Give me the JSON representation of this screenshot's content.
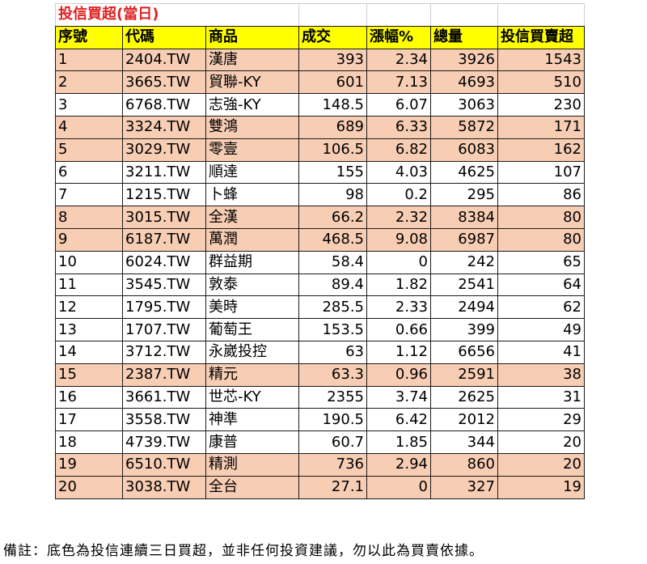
{
  "title": "投信買超(當日)",
  "colors": {
    "header_bg": "#ffff00",
    "highlight_bg": "#f7cdb4",
    "title_text": "#e02020"
  },
  "headers": [
    "序號",
    "代碼",
    "商品",
    "成交",
    "漲幅%",
    "總量",
    "投信買賣超"
  ],
  "rows": [
    {
      "rank": "1",
      "code": "2404.TW",
      "name": "漢唐",
      "price": "393",
      "change": "2.34",
      "volume": "3926",
      "net": "1543",
      "highlight": true
    },
    {
      "rank": "2",
      "code": "3665.TW",
      "name": "貿聯-KY",
      "price": "601",
      "change": "7.13",
      "volume": "4693",
      "net": "510",
      "highlight": true
    },
    {
      "rank": "3",
      "code": "6768.TW",
      "name": "志強-KY",
      "price": "148.5",
      "change": "6.07",
      "volume": "3063",
      "net": "230",
      "highlight": false
    },
    {
      "rank": "4",
      "code": "3324.TW",
      "name": "雙鴻",
      "price": "689",
      "change": "6.33",
      "volume": "5872",
      "net": "171",
      "highlight": true
    },
    {
      "rank": "5",
      "code": "3029.TW",
      "name": "零壹",
      "price": "106.5",
      "change": "6.82",
      "volume": "6083",
      "net": "162",
      "highlight": true
    },
    {
      "rank": "6",
      "code": "3211.TW",
      "name": "順達",
      "price": "155",
      "change": "4.03",
      "volume": "4625",
      "net": "107",
      "highlight": false
    },
    {
      "rank": "7",
      "code": "1215.TW",
      "name": "卜蜂",
      "price": "98",
      "change": "0.2",
      "volume": "295",
      "net": "86",
      "highlight": false
    },
    {
      "rank": "8",
      "code": "3015.TW",
      "name": "全漢",
      "price": "66.2",
      "change": "2.32",
      "volume": "8384",
      "net": "80",
      "highlight": true
    },
    {
      "rank": "9",
      "code": "6187.TW",
      "name": "萬潤",
      "price": "468.5",
      "change": "9.08",
      "volume": "6987",
      "net": "80",
      "highlight": true
    },
    {
      "rank": "10",
      "code": "6024.TW",
      "name": "群益期",
      "price": "58.4",
      "change": "0",
      "volume": "242",
      "net": "65",
      "highlight": false
    },
    {
      "rank": "11",
      "code": "3545.TW",
      "name": "敦泰",
      "price": "89.4",
      "change": "1.82",
      "volume": "2541",
      "net": "64",
      "highlight": false
    },
    {
      "rank": "12",
      "code": "1795.TW",
      "name": "美時",
      "price": "285.5",
      "change": "2.33",
      "volume": "2494",
      "net": "62",
      "highlight": false
    },
    {
      "rank": "13",
      "code": "1707.TW",
      "name": "葡萄王",
      "price": "153.5",
      "change": "0.66",
      "volume": "399",
      "net": "49",
      "highlight": false
    },
    {
      "rank": "14",
      "code": "3712.TW",
      "name": "永崴投控",
      "price": "63",
      "change": "1.12",
      "volume": "6656",
      "net": "41",
      "highlight": false
    },
    {
      "rank": "15",
      "code": "2387.TW",
      "name": "精元",
      "price": "63.3",
      "change": "0.96",
      "volume": "2591",
      "net": "38",
      "highlight": true
    },
    {
      "rank": "16",
      "code": "3661.TW",
      "name": "世芯-KY",
      "price": "2355",
      "change": "3.74",
      "volume": "2625",
      "net": "31",
      "highlight": false
    },
    {
      "rank": "17",
      "code": "3558.TW",
      "name": "神準",
      "price": "190.5",
      "change": "6.42",
      "volume": "2012",
      "net": "29",
      "highlight": false
    },
    {
      "rank": "18",
      "code": "4739.TW",
      "name": "康普",
      "price": "60.7",
      "change": "1.85",
      "volume": "344",
      "net": "20",
      "highlight": false
    },
    {
      "rank": "19",
      "code": "6510.TW",
      "name": "精測",
      "price": "736",
      "change": "2.94",
      "volume": "860",
      "net": "20",
      "highlight": true
    },
    {
      "rank": "20",
      "code": "3038.TW",
      "name": "全台",
      "price": "27.1",
      "change": "0",
      "volume": "327",
      "net": "19",
      "highlight": true
    }
  ],
  "note": "備註：底色為投信連續三日買超，並非任何投資建議，勿以此為買賣依據。"
}
